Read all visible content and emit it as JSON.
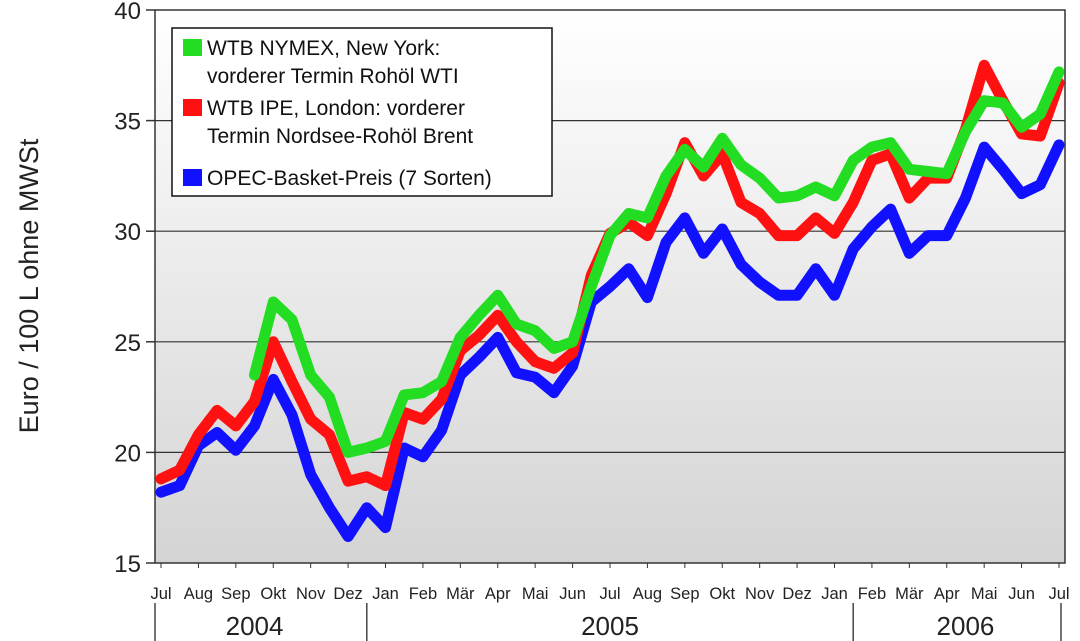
{
  "chart_data": {
    "type": "line",
    "title": "",
    "ylabel": "Euro / 100 L ohne MWSt",
    "xlabel": "",
    "ylim": [
      15,
      40
    ],
    "yticks": [
      "15",
      "20",
      "25",
      "30",
      "35",
      "40"
    ],
    "grid": true,
    "legend_position": "top-left",
    "month_labels": [
      "Jul",
      "Aug",
      "Sep",
      "Okt",
      "Nov",
      "Dez",
      "Jan",
      "Feb",
      "Mär",
      "Apr",
      "Mai",
      "Jun",
      "Jul",
      "Aug",
      "Sep",
      "Okt",
      "Nov",
      "Dez",
      "Jan",
      "Feb",
      "Mär",
      "Apr",
      "Mai",
      "Jun",
      "Jul"
    ],
    "year_labels": [
      {
        "label": "2004",
        "month_center": 2.5
      },
      {
        "label": "2005",
        "month_center": 12
      },
      {
        "label": "2006",
        "month_center": 21.5
      }
    ],
    "x": [
      0,
      0.5,
      1,
      1.5,
      2,
      2.5,
      3,
      3.5,
      4,
      4.5,
      5,
      5.5,
      6,
      6.5,
      7,
      7.5,
      8,
      8.5,
      9,
      9.5,
      10,
      10.5,
      11,
      11.5,
      12,
      12.5,
      13,
      13.5,
      14,
      14.5,
      15,
      15.5,
      16,
      16.5,
      17,
      17.5,
      18,
      18.5,
      19,
      19.5,
      20,
      20.5,
      21,
      21.5,
      22,
      22.5,
      23,
      23.5,
      24
    ],
    "series": [
      {
        "name": "WTB NYMEX, New York: vorderer Termin Rohöl WTI",
        "color": "#22dd22",
        "values": [
          null,
          null,
          null,
          null,
          null,
          23.5,
          26.8,
          26.0,
          23.5,
          22.5,
          20.0,
          20.2,
          20.5,
          22.6,
          22.7,
          23.2,
          25.2,
          26.2,
          27.1,
          25.8,
          25.5,
          24.7,
          25.0,
          27.5,
          29.8,
          30.8,
          30.6,
          32.5,
          33.7,
          32.9,
          34.2,
          33.0,
          32.4,
          31.5,
          31.6,
          32.0,
          31.6,
          33.2,
          33.8,
          34.0,
          32.8,
          32.7,
          32.6,
          34.5,
          35.9,
          35.8,
          34.7,
          35.3,
          37.2
        ]
      },
      {
        "name": "WTB IPE, London: vorderer Termin Nordsee-Rohöl Brent",
        "color": "#ff1111",
        "values": [
          18.8,
          19.2,
          20.8,
          21.9,
          21.2,
          22.3,
          25.0,
          23.2,
          21.5,
          20.8,
          18.7,
          18.9,
          18.5,
          21.8,
          21.5,
          22.4,
          24.6,
          25.3,
          26.2,
          25.0,
          24.1,
          23.8,
          24.5,
          28.0,
          29.9,
          30.4,
          29.8,
          31.7,
          34.0,
          32.5,
          33.5,
          31.3,
          30.8,
          29.8,
          29.8,
          30.6,
          29.9,
          31.3,
          33.2,
          33.5,
          31.5,
          32.4,
          32.4,
          34.6,
          37.5,
          35.9,
          34.4,
          34.3,
          36.7
        ]
      },
      {
        "name": "OPEC-Basket-Preis (7 Sorten)",
        "color": "#1111ff",
        "values": [
          18.2,
          18.5,
          20.3,
          20.9,
          20.1,
          21.2,
          23.3,
          21.7,
          19.0,
          17.5,
          16.2,
          17.5,
          16.6,
          20.2,
          19.8,
          21.0,
          23.5,
          24.3,
          25.2,
          23.6,
          23.4,
          22.7,
          23.9,
          26.8,
          27.5,
          28.3,
          27.0,
          29.5,
          30.6,
          29.0,
          30.1,
          28.5,
          27.7,
          27.1,
          27.1,
          28.3,
          27.1,
          29.2,
          30.2,
          31.0,
          29.0,
          29.8,
          29.8,
          31.5,
          33.8,
          32.8,
          31.7,
          32.1,
          33.9
        ]
      }
    ]
  }
}
